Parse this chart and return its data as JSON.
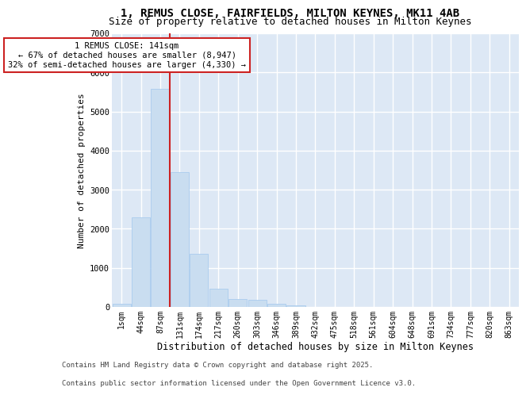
{
  "title_line1": "1, REMUS CLOSE, FAIRFIELDS, MILTON KEYNES, MK11 4AB",
  "title_line2": "Size of property relative to detached houses in Milton Keynes",
  "xlabel": "Distribution of detached houses by size in Milton Keynes",
  "ylabel": "Number of detached properties",
  "categories": [
    "1sqm",
    "44sqm",
    "87sqm",
    "131sqm",
    "174sqm",
    "217sqm",
    "260sqm",
    "303sqm",
    "346sqm",
    "389sqm",
    "432sqm",
    "475sqm",
    "518sqm",
    "561sqm",
    "604sqm",
    "648sqm",
    "691sqm",
    "734sqm",
    "777sqm",
    "820sqm",
    "863sqm"
  ],
  "values": [
    75,
    2300,
    5580,
    3440,
    1350,
    460,
    200,
    175,
    90,
    50,
    0,
    0,
    0,
    0,
    0,
    0,
    0,
    0,
    0,
    0,
    0
  ],
  "bar_color": "#c9ddf0",
  "bar_edge_color": "#aaccee",
  "vline_index": 2.5,
  "property_line_label": "1 REMUS CLOSE: 141sqm",
  "annotation_line1": "← 67% of detached houses are smaller (8,947)",
  "annotation_line2": "32% of semi-detached houses are larger (4,330) →",
  "vertical_line_color": "#cc2222",
  "ylim": [
    0,
    7000
  ],
  "yticks": [
    0,
    1000,
    2000,
    3000,
    4000,
    5000,
    6000,
    7000
  ],
  "plot_bg_color": "#dde8f5",
  "grid_color": "#ffffff",
  "fig_bg_color": "#ffffff",
  "footer_line1": "Contains HM Land Registry data © Crown copyright and database right 2025.",
  "footer_line2": "Contains public sector information licensed under the Open Government Licence v3.0.",
  "title_fontsize": 10,
  "subtitle_fontsize": 9,
  "tick_fontsize": 7,
  "ylabel_fontsize": 8,
  "xlabel_fontsize": 8.5,
  "annot_fontsize": 7.5,
  "footer_fontsize": 6.5
}
